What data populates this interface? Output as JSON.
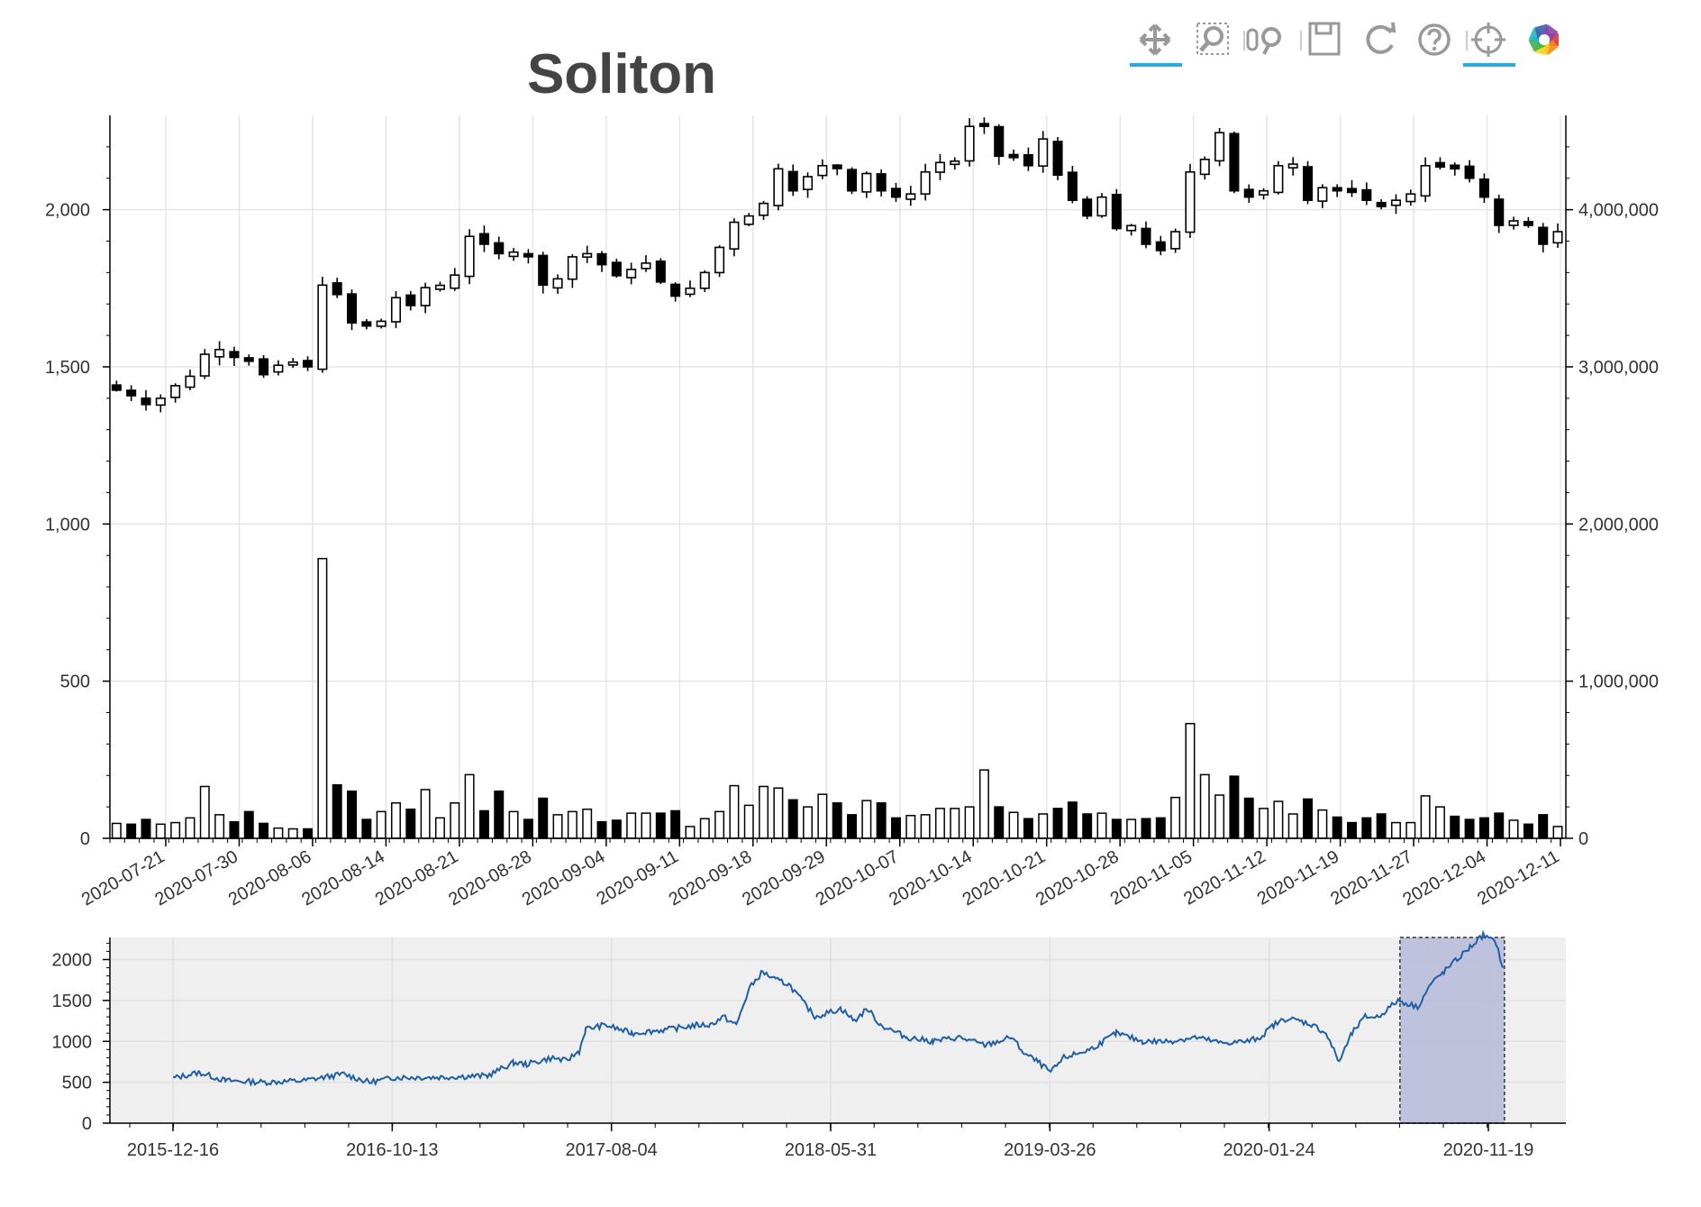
{
  "toolbar": {
    "tools": [
      {
        "name": "pan-tool-icon",
        "icon": "pan",
        "active": true
      },
      {
        "name": "box-zoom-tool-icon",
        "icon": "box-zoom",
        "active": false
      },
      {
        "name": "wheel-zoom-tool-icon",
        "icon": "wheel-zoom",
        "active": false
      },
      {
        "name": "save-tool-icon",
        "icon": "save",
        "active": false
      },
      {
        "name": "reset-tool-icon",
        "icon": "reset",
        "active": false
      },
      {
        "name": "help-tool-icon",
        "icon": "help",
        "active": false
      },
      {
        "name": "crosshair-tool-icon",
        "icon": "crosshair",
        "active": true
      },
      {
        "name": "bokeh-logo-icon",
        "icon": "bokeh-logo",
        "active": false
      }
    ],
    "active_color": "#26aae1"
  },
  "colors": {
    "up_fill": "#ffffff",
    "down_fill": "#000000",
    "stroke": "#000000",
    "grid": "#e5e5e5",
    "line": "#1f5fa8",
    "range_box": "#b8bcd9",
    "range_bg": "#efefef"
  },
  "chart_data": [
    {
      "type": "candlestick",
      "title": "Soliton",
      "x_ticks": [
        "2020-07-21",
        "2020-07-30",
        "2020-08-06",
        "2020-08-14",
        "2020-08-21",
        "2020-08-28",
        "2020-09-04",
        "2020-09-11",
        "2020-09-18",
        "2020-09-29",
        "2020-10-07",
        "2020-10-14",
        "2020-10-21",
        "2020-10-28",
        "2020-11-05",
        "2020-11-12",
        "2020-11-19",
        "2020-11-27",
        "2020-12-04",
        "2020-12-11"
      ],
      "y_left": {
        "min": 0,
        "max": 2300,
        "ticks": [
          0,
          500,
          1000,
          1500,
          2000
        ],
        "labels": [
          "0",
          "500",
          "1,000",
          "1,500",
          "2,000"
        ]
      },
      "y_right": {
        "min": 0,
        "max": 4600000,
        "ticks": [
          0,
          1000000,
          2000000,
          3000000,
          4000000
        ],
        "labels": [
          "0",
          "1,000,000",
          "2,000,000",
          "3,000,000",
          "4,000,000"
        ]
      },
      "closes": [
        1430,
        1408,
        1380,
        1400,
        1440,
        1470,
        1540,
        1555,
        1530,
        1522,
        1475,
        1505,
        1515,
        1500,
        1760,
        1730,
        1640,
        1630,
        1645,
        1720,
        1695,
        1752,
        1755,
        1792,
        1915,
        1890,
        1860,
        1865,
        1850,
        1760,
        1780,
        1850,
        1860,
        1825,
        1790,
        1810,
        1830,
        1770,
        1725,
        1750,
        1800,
        1880,
        1960,
        1980,
        2020,
        2130,
        2060,
        2105,
        2140,
        2135,
        2060,
        2115,
        2060,
        2040,
        2050,
        2120,
        2150,
        2150,
        2265,
        2265,
        2170,
        2170,
        2140,
        2225,
        2110,
        2030,
        1980,
        2040,
        1940,
        1945,
        1890,
        1870,
        1930,
        2120,
        2160,
        2245,
        2060,
        2040,
        2060,
        2140,
        2145,
        2030,
        2070,
        2060,
        2055,
        2030,
        2010,
        2030,
        2050,
        2140,
        2140,
        2130,
        2100,
        2040,
        1950,
        1960,
        1950,
        1890,
        1930
      ],
      "volume": [
        95000,
        90000,
        120000,
        90000,
        100000,
        130000,
        330000,
        150000,
        105000,
        170000,
        95000,
        65000,
        60000,
        60000,
        1780000,
        340000,
        300000,
        120000,
        170000,
        225000,
        185000,
        310000,
        130000,
        225000,
        405000,
        175000,
        300000,
        170000,
        120000,
        255000,
        150000,
        170000,
        185000,
        105000,
        115000,
        160000,
        160000,
        160000,
        175000,
        75000,
        125000,
        170000,
        335000,
        210000,
        330000,
        320000,
        245000,
        200000,
        280000,
        225000,
        150000,
        240000,
        225000,
        130000,
        145000,
        150000,
        190000,
        190000,
        200000,
        435000,
        200000,
        165000,
        125000,
        155000,
        190000,
        230000,
        155000,
        160000,
        120000,
        120000,
        125000,
        130000,
        260000,
        730000,
        405000,
        275000,
        395000,
        255000,
        190000,
        235000,
        155000,
        250000,
        180000,
        135000,
        100000,
        130000,
        155000,
        100000,
        100000,
        270000,
        200000,
        140000,
        120000,
        130000,
        160000,
        115000,
        90000,
        150000,
        75000
      ],
      "ylabel": "",
      "xlabel": ""
    },
    {
      "type": "line",
      "x_ticks": [
        "2015-12-16",
        "2016-10-13",
        "2017-08-04",
        "2018-05-31",
        "2019-03-26",
        "2020-01-24",
        "2020-11-19"
      ],
      "y_ticks": [
        0,
        500,
        1000,
        1500,
        2000
      ],
      "ylim": [
        0,
        2270
      ],
      "anchors": [
        [
          0,
          550
        ],
        [
          20,
          620
        ],
        [
          40,
          520
        ],
        [
          70,
          500
        ],
        [
          100,
          520
        ],
        [
          130,
          600
        ],
        [
          150,
          500
        ],
        [
          170,
          560
        ],
        [
          200,
          560
        ],
        [
          240,
          580
        ],
        [
          260,
          740
        ],
        [
          270,
          720
        ],
        [
          290,
          800
        ],
        [
          300,
          760
        ],
        [
          310,
          880
        ],
        [
          315,
          1150
        ],
        [
          330,
          1200
        ],
        [
          350,
          1100
        ],
        [
          380,
          1150
        ],
        [
          400,
          1200
        ],
        [
          410,
          1200
        ],
        [
          420,
          1300
        ],
        [
          430,
          1200
        ],
        [
          440,
          1650
        ],
        [
          450,
          1850
        ],
        [
          460,
          1750
        ],
        [
          470,
          1700
        ],
        [
          490,
          1300
        ],
        [
          510,
          1400
        ],
        [
          520,
          1250
        ],
        [
          530,
          1400
        ],
        [
          540,
          1200
        ],
        [
          560,
          1050
        ],
        [
          580,
          1000
        ],
        [
          600,
          1050
        ],
        [
          620,
          950
        ],
        [
          640,
          1050
        ],
        [
          650,
          850
        ],
        [
          660,
          750
        ],
        [
          670,
          620
        ],
        [
          680,
          800
        ],
        [
          700,
          900
        ],
        [
          720,
          1100
        ],
        [
          740,
          1000
        ],
        [
          760,
          1000
        ],
        [
          780,
          1050
        ],
        [
          800,
          980
        ],
        [
          820,
          1000
        ],
        [
          830,
          1050
        ],
        [
          840,
          1200
        ],
        [
          850,
          1280
        ],
        [
          860,
          1250
        ],
        [
          870,
          1200
        ],
        [
          880,
          1100
        ],
        [
          890,
          750
        ],
        [
          900,
          1100
        ],
        [
          910,
          1300
        ],
        [
          920,
          1300
        ],
        [
          935,
          1500
        ],
        [
          950,
          1420
        ],
        [
          960,
          1700
        ],
        [
          970,
          1850
        ],
        [
          980,
          2000
        ],
        [
          990,
          2150
        ],
        [
          1000,
          2300
        ],
        [
          1010,
          2200
        ],
        [
          1015,
          1900
        ]
      ],
      "selection_range": [
        "2020-07-21",
        "2020-12-11"
      ]
    }
  ]
}
